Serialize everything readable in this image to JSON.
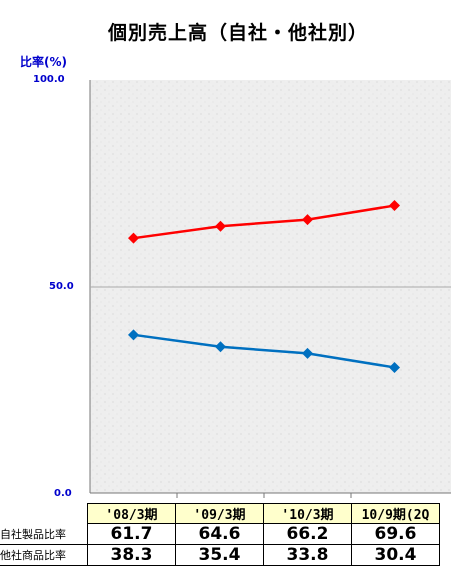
{
  "title": "個別売上高（自社・他社別）",
  "ylabel": "比率(%)",
  "yticks": [
    "100.0",
    "50.0",
    "0.0"
  ],
  "colors": {
    "series1": "#ff0000",
    "series2": "#0070c0",
    "plot_bg": "#efefef",
    "gridline": "#999999"
  },
  "chart_data": {
    "type": "line",
    "title": "個別売上高（自社・他社別）",
    "ylabel": "比率(%)",
    "ylim": [
      0,
      100
    ],
    "categories": [
      "'08/3期",
      "'09/3期",
      "'10/3期",
      "10/9期(2Q"
    ],
    "series": [
      {
        "name": "自社製品比率",
        "values": [
          61.7,
          64.6,
          66.2,
          69.6
        ],
        "color": "#ff0000"
      },
      {
        "name": "他社商品比率",
        "values": [
          38.3,
          35.4,
          33.8,
          30.4
        ],
        "color": "#0070c0"
      }
    ]
  },
  "table": {
    "headers": [
      "'08/3期",
      "'09/3期",
      "'10/3期",
      "10/9期(2Q"
    ],
    "rows": [
      {
        "label": "自社製品比率",
        "values": [
          "61.7",
          "64.6",
          "66.2",
          "69.6"
        ]
      },
      {
        "label": "他社商品比率",
        "values": [
          "38.3",
          "35.4",
          "33.8",
          "30.4"
        ]
      }
    ]
  }
}
